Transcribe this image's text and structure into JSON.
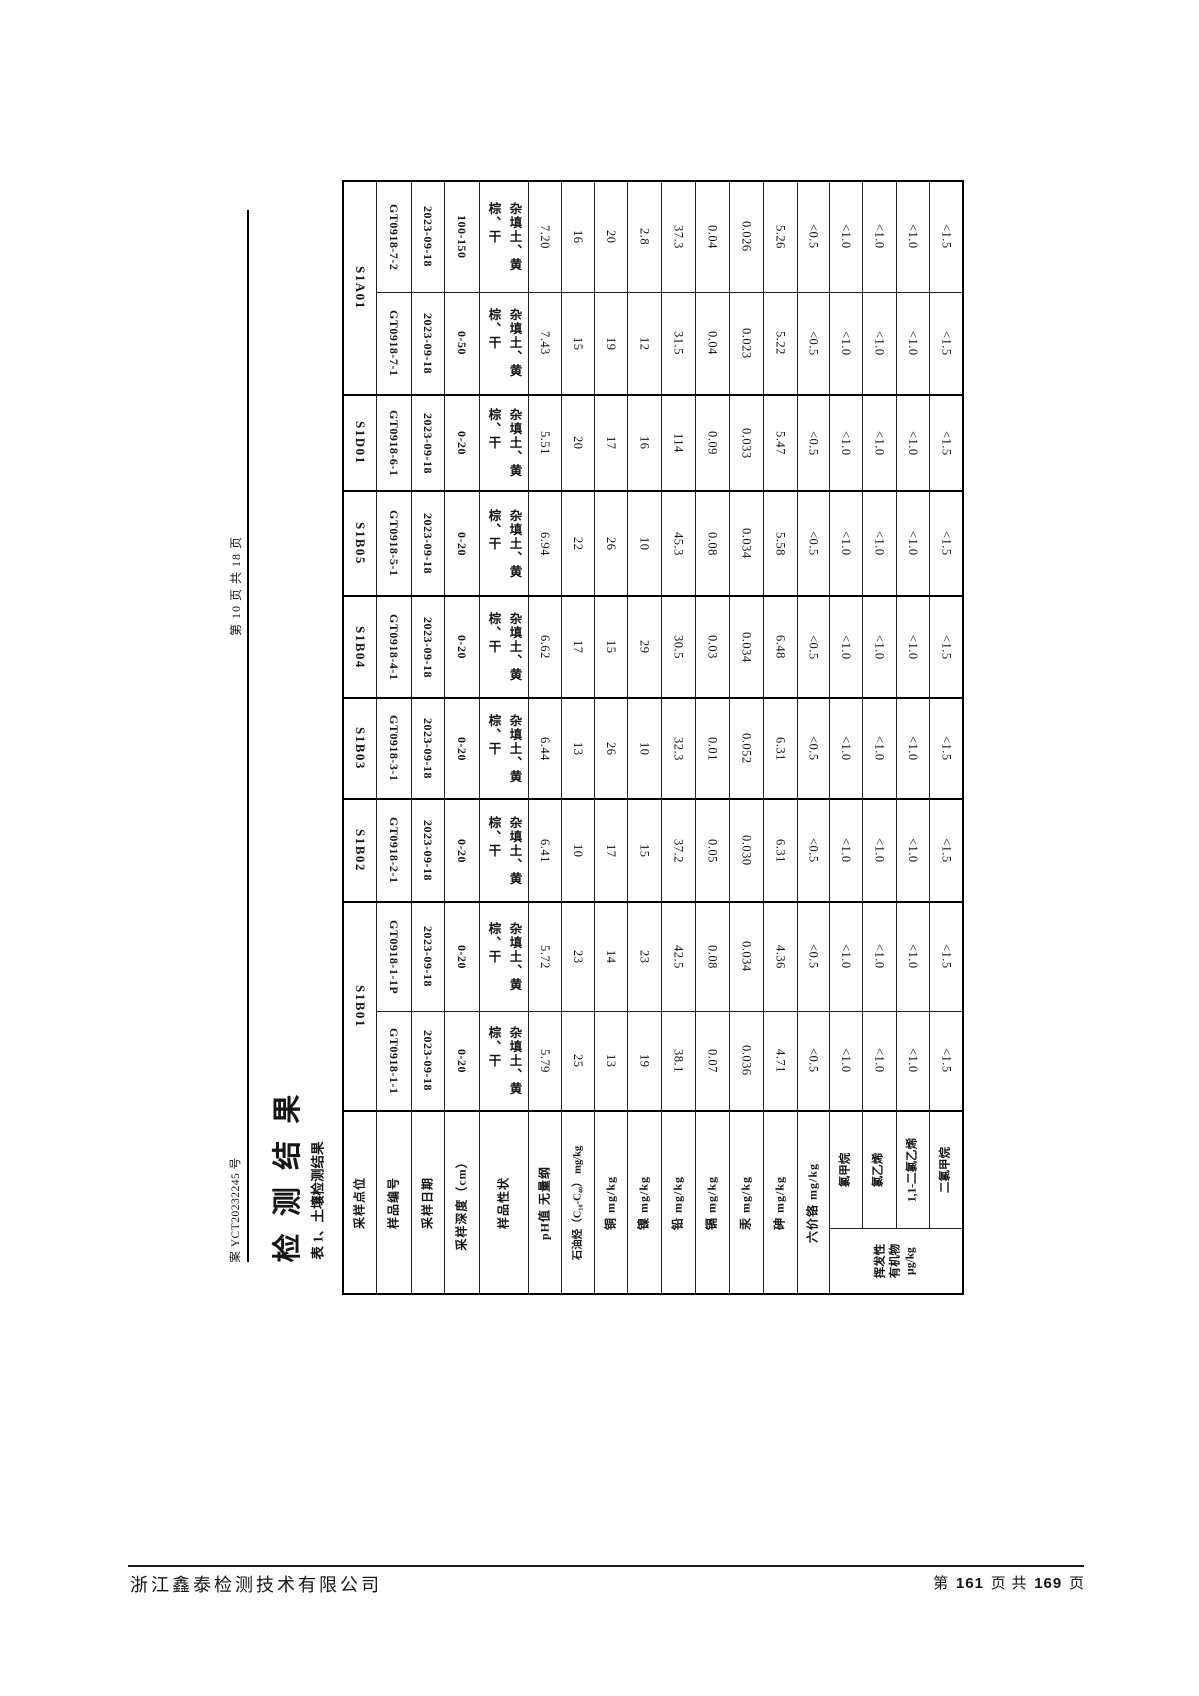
{
  "margin": {
    "page_indicator": "第 10 页 共 18 页",
    "doc_number": "案 YCT20232245 号"
  },
  "title": "检 测 结 果",
  "caption": "表 1、土壤检测结果",
  "table": {
    "param_headers": [
      "采样点位",
      "样品编号",
      "采样日期",
      "采样深度（cm）",
      "样品性状",
      "pH值 无量纲",
      "石油烃（C₁₀-C₄₀） mg/kg",
      "铜 mg/kg",
      "镍 mg/kg",
      "铅 mg/kg",
      "镉 mg/kg",
      "汞 mg/kg",
      "砷 mg/kg",
      "六价铬 mg/kg"
    ],
    "voc_group": {
      "group_label": "挥发性 有机物 μg/kg",
      "sub_labels": [
        "氯甲烷",
        "氯乙烯",
        "1,1-二氯乙烯",
        "二氯甲烷"
      ]
    },
    "samples": [
      {
        "location": "S1A01",
        "location_rowspan": 2,
        "group_start": true,
        "values": [
          "GT0918-7-2",
          "2023-09-18",
          "100-150",
          "杂填土、黄\n棕、干",
          "7.20",
          "16",
          "20",
          "2.8",
          "37.3",
          "0.04",
          "0.026",
          "5.26",
          "<0.5",
          "<1.0",
          "<1.0",
          "<1.0",
          "<1.5"
        ]
      },
      {
        "location": null,
        "group_start": false,
        "values": [
          "GT0918-7-1",
          "2023-09-18",
          "0-50",
          "杂填土、黄\n棕、干",
          "7.43",
          "15",
          "19",
          "12",
          "31.5",
          "0.04",
          "0.023",
          "5.22",
          "<0.5",
          "<1.0",
          "<1.0",
          "<1.0",
          "<1.5"
        ]
      },
      {
        "location": "S1D01",
        "location_rowspan": 1,
        "group_start": true,
        "values": [
          "GT0918-6-1",
          "2023-09-18",
          "0-20",
          "杂填土、黄\n棕、干",
          "5.51",
          "20",
          "17",
          "16",
          "114",
          "0.09",
          "0.033",
          "5.47",
          "<0.5",
          "<1.0",
          "<1.0",
          "<1.0",
          "<1.5"
        ]
      },
      {
        "location": "S1B05",
        "location_rowspan": 1,
        "group_start": true,
        "values": [
          "GT0918-5-1",
          "2023-09-18",
          "0-20",
          "杂填土、黄\n棕、干",
          "6.94",
          "22",
          "26",
          "10",
          "45.3",
          "0.08",
          "0.034",
          "5.58",
          "<0.5",
          "<1.0",
          "<1.0",
          "<1.0",
          "<1.5"
        ]
      },
      {
        "location": "S1B04",
        "location_rowspan": 1,
        "group_start": true,
        "values": [
          "GT0918-4-1",
          "2023-09-18",
          "0-20",
          "杂填土、黄\n棕、干",
          "6.62",
          "17",
          "15",
          "29",
          "30.5",
          "0.03",
          "0.034",
          "6.48",
          "<0.5",
          "<1.0",
          "<1.0",
          "<1.0",
          "<1.5"
        ]
      },
      {
        "location": "S1B03",
        "location_rowspan": 1,
        "group_start": true,
        "values": [
          "GT0918-3-1",
          "2023-09-18",
          "0-20",
          "杂填土、黄\n棕、干",
          "6.44",
          "13",
          "26",
          "10",
          "32.3",
          "0.01",
          "0.052",
          "6.31",
          "<0.5",
          "<1.0",
          "<1.0",
          "<1.0",
          "<1.5"
        ]
      },
      {
        "location": "S1B02",
        "location_rowspan": 1,
        "group_start": true,
        "values": [
          "GT0918-2-1",
          "2023-09-18",
          "0-20",
          "杂填土、黄\n棕、干",
          "6.41",
          "10",
          "17",
          "15",
          "37.2",
          "0.05",
          "0.030",
          "6.31",
          "<0.5",
          "<1.0",
          "<1.0",
          "<1.0",
          "<1.5"
        ]
      },
      {
        "location": "S1B01",
        "location_rowspan": 2,
        "group_start": true,
        "values": [
          "GT0918-1-1P",
          "2023-09-18",
          "0-20",
          "杂填土、黄\n棕、干",
          "5.72",
          "23",
          "14",
          "23",
          "42.5",
          "0.08",
          "0.034",
          "4.36",
          "<0.5",
          "<1.0",
          "<1.0",
          "<1.0",
          "<1.5"
        ]
      },
      {
        "location": null,
        "group_start": false,
        "values": [
          "GT0918-1-1",
          "2023-09-18",
          "0-20",
          "杂填土、黄\n棕、干",
          "5.79",
          "25",
          "13",
          "19",
          "38.1",
          "0.07",
          "0.036",
          "4.71",
          "<0.5",
          "<1.0",
          "<1.0",
          "<1.0",
          "<1.5"
        ]
      }
    ]
  },
  "footer": {
    "company": "浙江鑫泰检测技术有限公司",
    "page": {
      "prefix": "第 ",
      "current": "161",
      "mid": " 页 共 ",
      "total": "169",
      "suffix": " 页"
    }
  }
}
